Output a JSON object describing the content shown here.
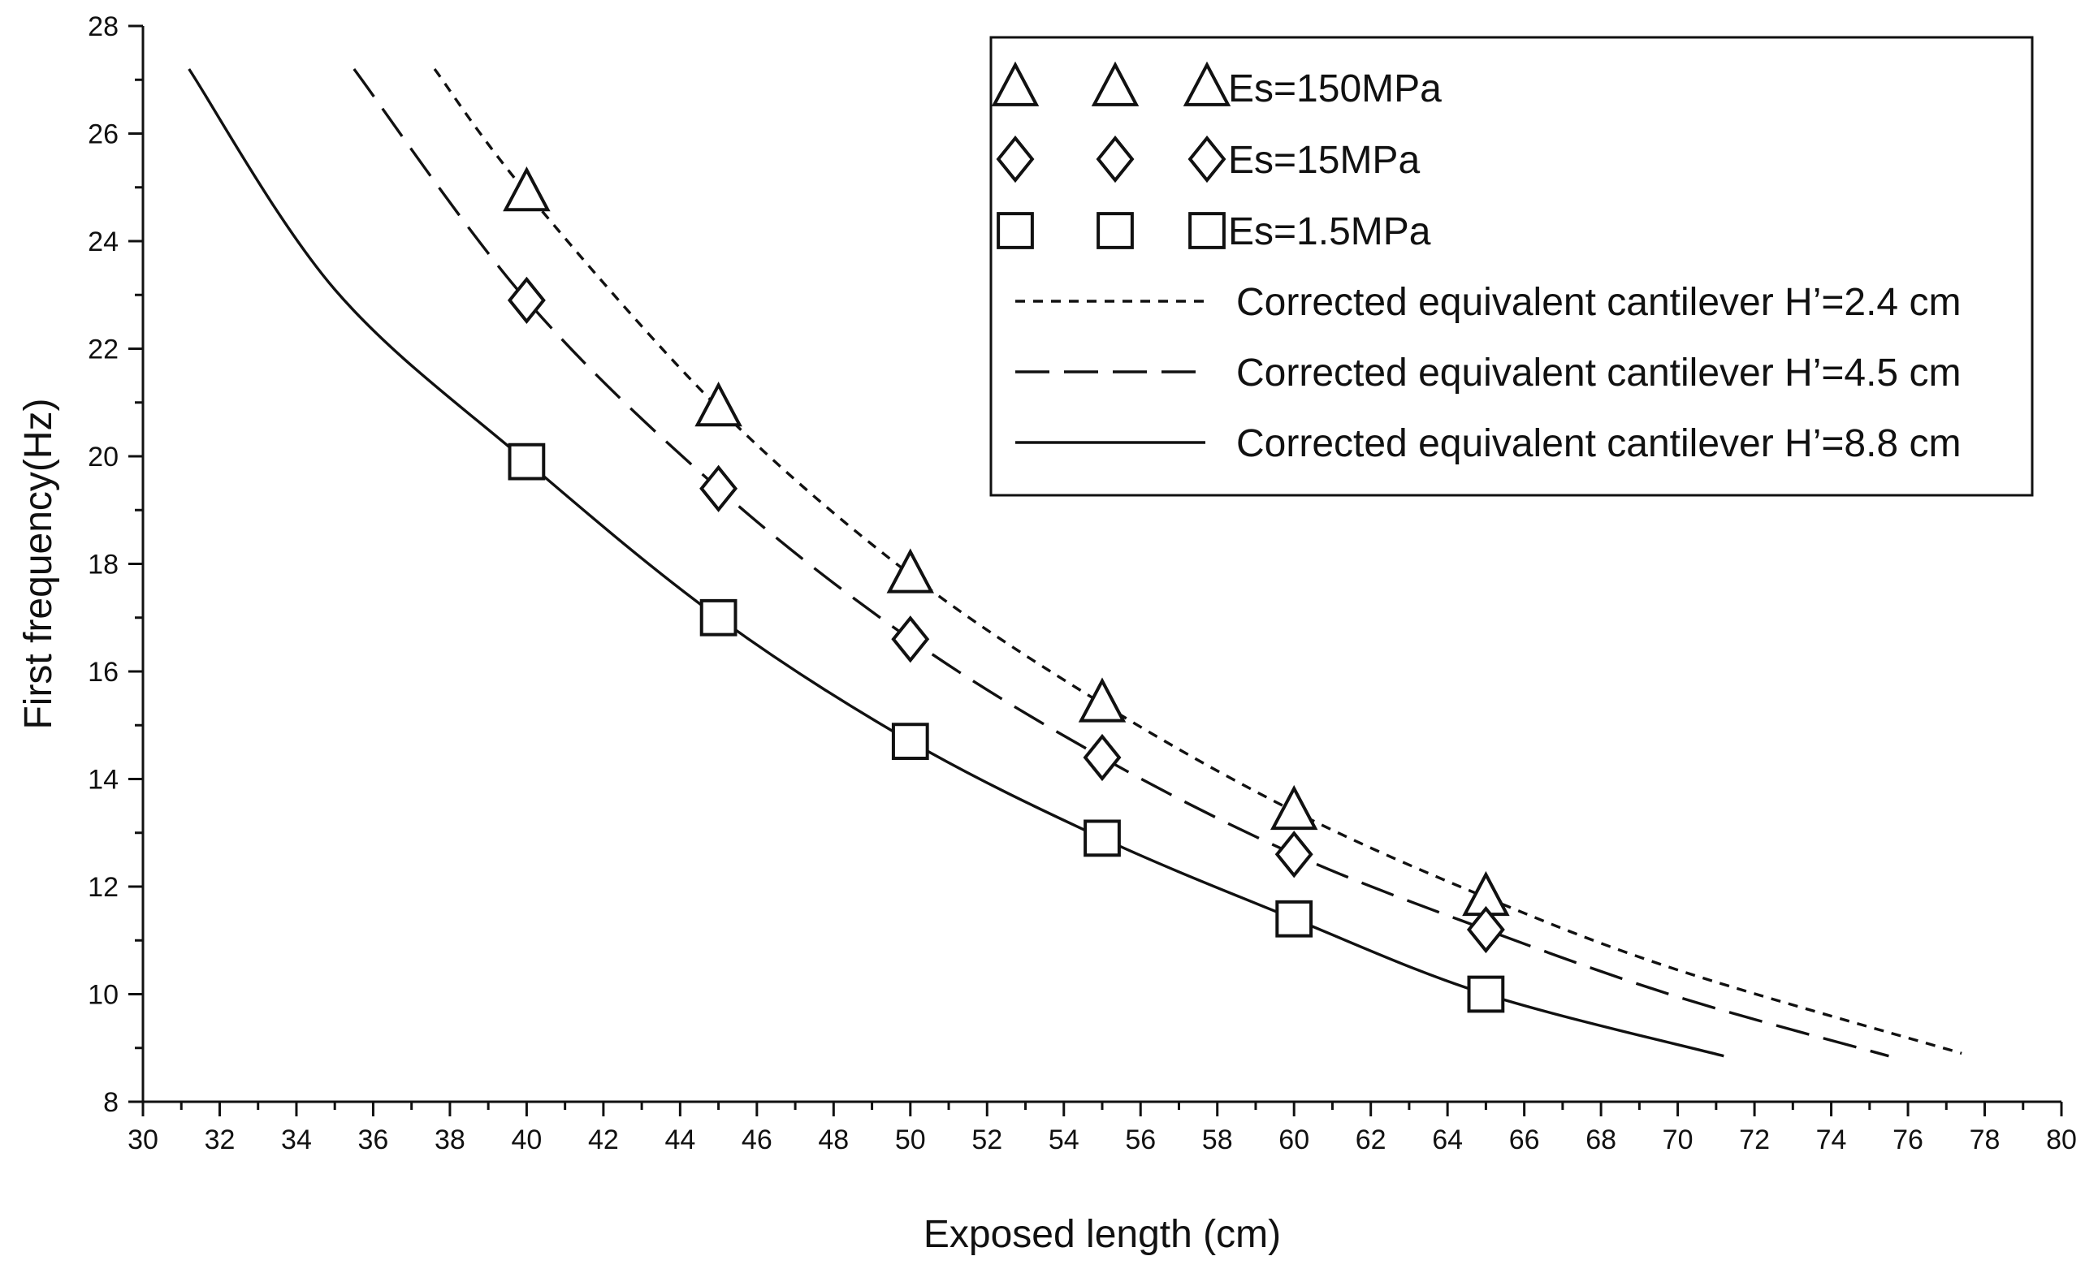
{
  "chart_data": {
    "type": "scatter",
    "title": "",
    "xlabel": "Exposed length (cm)",
    "ylabel": "First frequency(Hz)",
    "xlim": [
      30,
      80
    ],
    "ylim": [
      8,
      28
    ],
    "xticks": [
      30,
      32,
      34,
      36,
      38,
      40,
      42,
      44,
      46,
      48,
      50,
      52,
      54,
      56,
      58,
      60,
      62,
      64,
      66,
      68,
      70,
      72,
      74,
      76,
      78,
      80
    ],
    "yticks": [
      8,
      10,
      12,
      14,
      16,
      18,
      20,
      22,
      24,
      26,
      28
    ],
    "grid": false,
    "legend_position": "top-right",
    "series": [
      {
        "name": "Es=150MPa",
        "kind": "markers",
        "marker": "triangle",
        "x": [
          40,
          45,
          50,
          55,
          60,
          65
        ],
        "y": [
          24.9,
          20.9,
          17.8,
          15.4,
          13.4,
          11.8
        ]
      },
      {
        "name": "Es=15MPa",
        "kind": "markers",
        "marker": "diamond",
        "x": [
          40,
          45,
          50,
          55,
          60,
          65
        ],
        "y": [
          22.9,
          19.4,
          16.6,
          14.4,
          12.6,
          11.2
        ]
      },
      {
        "name": "Es=1.5MPa",
        "kind": "markers",
        "marker": "square",
        "x": [
          40,
          45,
          50,
          55,
          60,
          65
        ],
        "y": [
          19.9,
          17.0,
          14.7,
          12.9,
          11.4,
          10.0
        ]
      },
      {
        "name": "Corrected equivalent cantilever H’=2.4 cm",
        "kind": "line",
        "dash": "short",
        "x": [
          37.6,
          40,
          45,
          50,
          55,
          60,
          65,
          70,
          77.4
        ],
        "y": [
          27.2,
          24.9,
          20.9,
          17.8,
          15.4,
          13.4,
          11.8,
          10.45,
          8.9
        ]
      },
      {
        "name": "Corrected equivalent cantilever H’=4.5 cm",
        "kind": "line",
        "dash": "long",
        "x": [
          35.5,
          40,
          45,
          50,
          55,
          60,
          65,
          70,
          75.5
        ],
        "y": [
          27.2,
          22.9,
          19.4,
          16.6,
          14.4,
          12.6,
          11.2,
          9.95,
          8.85
        ]
      },
      {
        "name": "Corrected equivalent cantilever H’=8.8 cm",
        "kind": "line",
        "dash": "solid",
        "x": [
          31.2,
          35,
          40,
          45,
          50,
          55,
          60,
          65,
          71.2
        ],
        "y": [
          27.2,
          23.1,
          19.9,
          17.0,
          14.7,
          12.9,
          11.4,
          10.0,
          8.85
        ]
      }
    ]
  }
}
